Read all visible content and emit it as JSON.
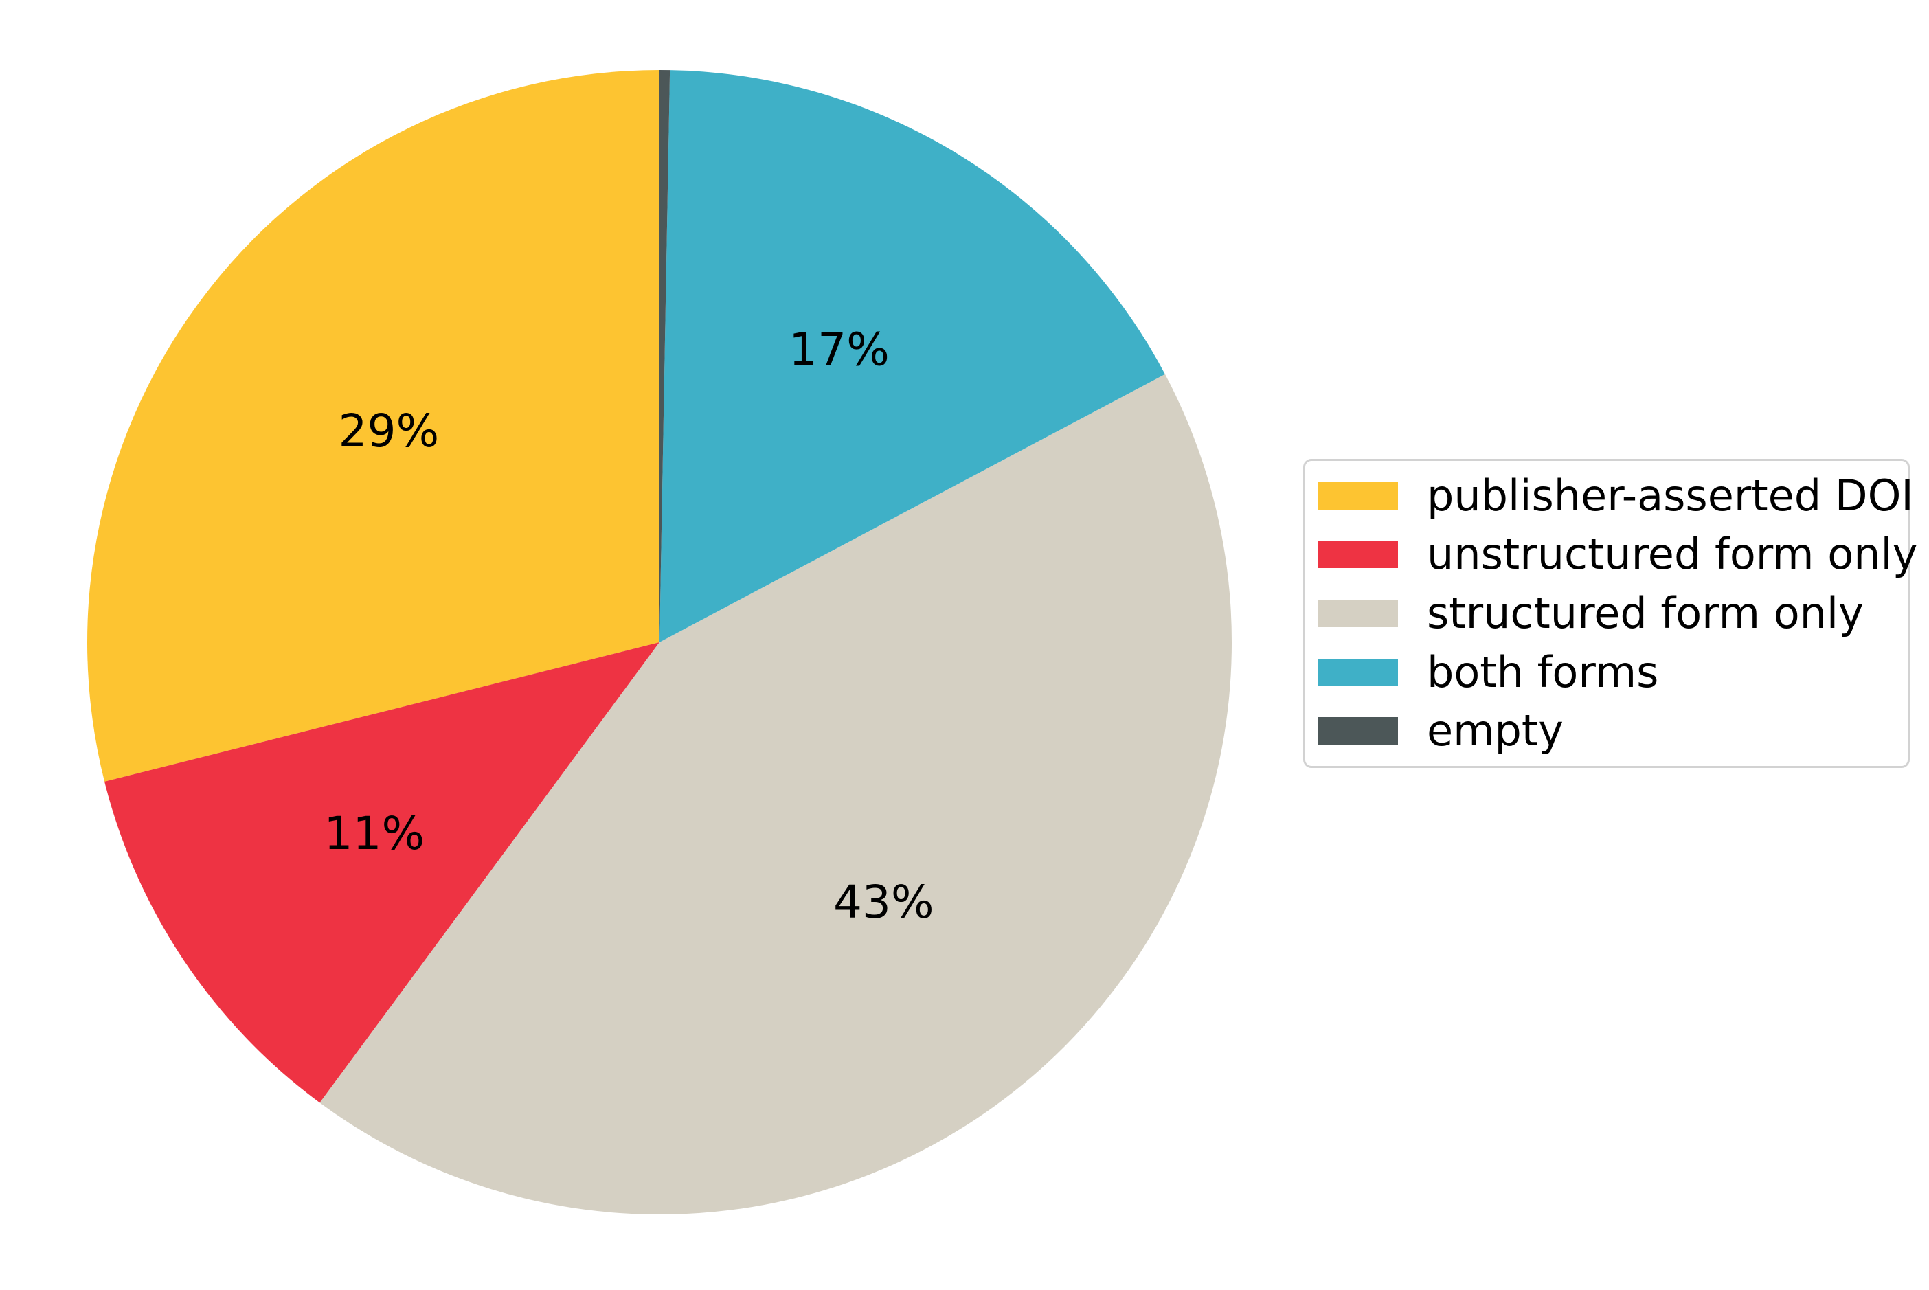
{
  "figure": {
    "background": "#ffffff"
  },
  "chart_data": {
    "type": "pie",
    "start_angle": 90,
    "direction": "counterclockwise",
    "pct_distance": 0.6,
    "legend": {
      "position": "right",
      "border_color": "#d2d2d2"
    },
    "slices": [
      {
        "label": "publisher-asserted DOI",
        "value": 29,
        "pct_label": "29%",
        "color": "#FDC431"
      },
      {
        "label": "unstructured form only",
        "value": 11,
        "pct_label": "11%",
        "color": "#EE3343"
      },
      {
        "label": "structured form only",
        "value": 43,
        "pct_label": "43%",
        "color": "#D5D0C3"
      },
      {
        "label": "both forms",
        "value": 17,
        "pct_label": "17%",
        "color": "#3FB0C7"
      },
      {
        "label": "empty",
        "value": 0.29,
        "pct_label": "",
        "color": "#4C5758"
      }
    ]
  }
}
